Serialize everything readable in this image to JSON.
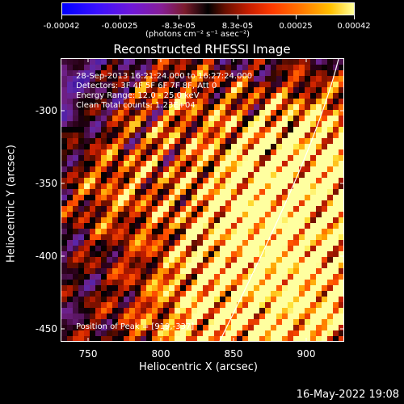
{
  "colorbar": {
    "ticks": [
      "-0.00042",
      "-0.00025",
      "-8.3e-05",
      "8.3e-05",
      "0.00025",
      "0.00042"
    ],
    "units": "(photons cm⁻² s⁻¹ asec⁻²)"
  },
  "chart_data": {
    "type": "heatmap",
    "title": "Reconstructed RHESSI Image",
    "xlabel": "Heliocentric X (arcsec)",
    "ylabel": "Heliocentric Y (arcsec)",
    "xlim": [
      730,
      925
    ],
    "ylim": [
      -457,
      -262
    ],
    "x_ticks": [
      "750",
      "800",
      "850",
      "900"
    ],
    "y_ticks": [
      "-300",
      "-350",
      "-400",
      "-450"
    ],
    "colorscale_range": [
      -0.00042,
      0.00042
    ],
    "peak_position": [
      919,
      -337
    ]
  },
  "annotations": {
    "time_range": "28-Sep-2013 16:21:24.000 to 16:27:24.000",
    "detectors": "Detectors: 3F 4F 5F 6F 7F 8F, Att 0",
    "energy": "Energy Range: 12.0 - 25.0 keV",
    "clean": "Clean     Total counts: 1.23E+04",
    "peak": "Position of Peak = [919,-337]"
  },
  "timestamp": "16-May-2022 19:08"
}
